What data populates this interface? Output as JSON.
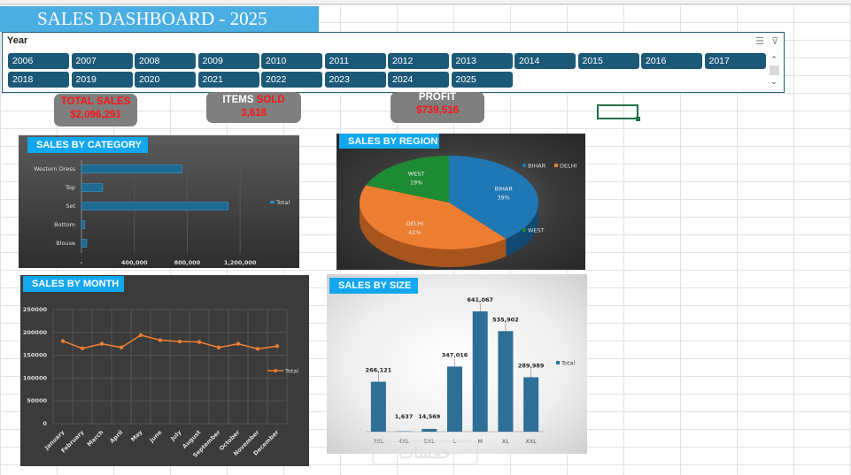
{
  "title": "SALES DASHBOARD - 2025",
  "slicer": {
    "title": "Year",
    "years": [
      "2006",
      "2007",
      "2008",
      "2009",
      "2010",
      "2011",
      "2012",
      "2013",
      "2014",
      "2015",
      "2016",
      "2017",
      "2018",
      "2019",
      "2020",
      "2021",
      "2022",
      "2023",
      "2024",
      "2025"
    ]
  },
  "kpis": {
    "total_sales": {
      "label": "TOTAL SALES",
      "value": "$2,096,291"
    },
    "items_sold": {
      "label_white": "ITEMS",
      "label_red": "SOLD",
      "value": "3,618"
    },
    "profit": {
      "label": "PROFIT",
      "value": "$739,516"
    }
  },
  "colors": {
    "accent": "#12a7ee",
    "slicer_button": "#1c5978",
    "kpi_value": "#ff1414",
    "series_blue": "#1f77b4",
    "series_orange": "#ed7d31",
    "series_green": "#1e8a33",
    "size_bar": "#2e6f96"
  },
  "chart_data": [
    {
      "type": "bar",
      "title": "SALES BY CATEGORY",
      "orientation": "horizontal",
      "categories": [
        "Western Dress",
        "Top",
        "Set",
        "Bottom",
        "Blouse"
      ],
      "series": [
        {
          "name": "Total",
          "values": [
            760000,
            160000,
            1110000,
            25000,
            40000
          ]
        }
      ],
      "ticks": [
        "-",
        "400,000",
        "800,000",
        "1,200,000"
      ],
      "xlim": [
        0,
        1400000
      ],
      "legend": "right"
    },
    {
      "type": "pie",
      "title": "SALES BY REGION",
      "labels": [
        "BIHAR",
        "DELHI",
        "WEST"
      ],
      "values": [
        39,
        42,
        19
      ],
      "percent_labels": [
        "39%",
        "42%",
        "19%"
      ],
      "legend": "right"
    },
    {
      "type": "line",
      "title": "SALES BY MONTH",
      "categories": [
        "January",
        "February",
        "March",
        "April",
        "May",
        "June",
        "July",
        "August",
        "September",
        "October",
        "November",
        "December"
      ],
      "series": [
        {
          "name": "Total",
          "values": [
            181000,
            165000,
            175000,
            167000,
            194000,
            183000,
            180000,
            179000,
            167000,
            175000,
            164000,
            170000
          ]
        }
      ],
      "yticks": [
        "0",
        "50000",
        "100000",
        "150000",
        "200000",
        "250000"
      ],
      "ylim": [
        0,
        250000
      ],
      "legend": "right"
    },
    {
      "type": "bar",
      "title": "SALES BY SIZE",
      "categories": [
        "3XL",
        "4XL",
        "5XL",
        "L",
        "M",
        "XL",
        "XXL"
      ],
      "series": [
        {
          "name": "Total",
          "values": [
            266121,
            1637,
            14569,
            347016,
            641067,
            535902,
            289989
          ]
        }
      ],
      "value_labels": [
        "266,121",
        "1,637",
        "14,569",
        "347,016",
        "641,067",
        "535,902",
        "289,989"
      ],
      "ylim": [
        0,
        700000
      ],
      "legend": "right"
    }
  ]
}
